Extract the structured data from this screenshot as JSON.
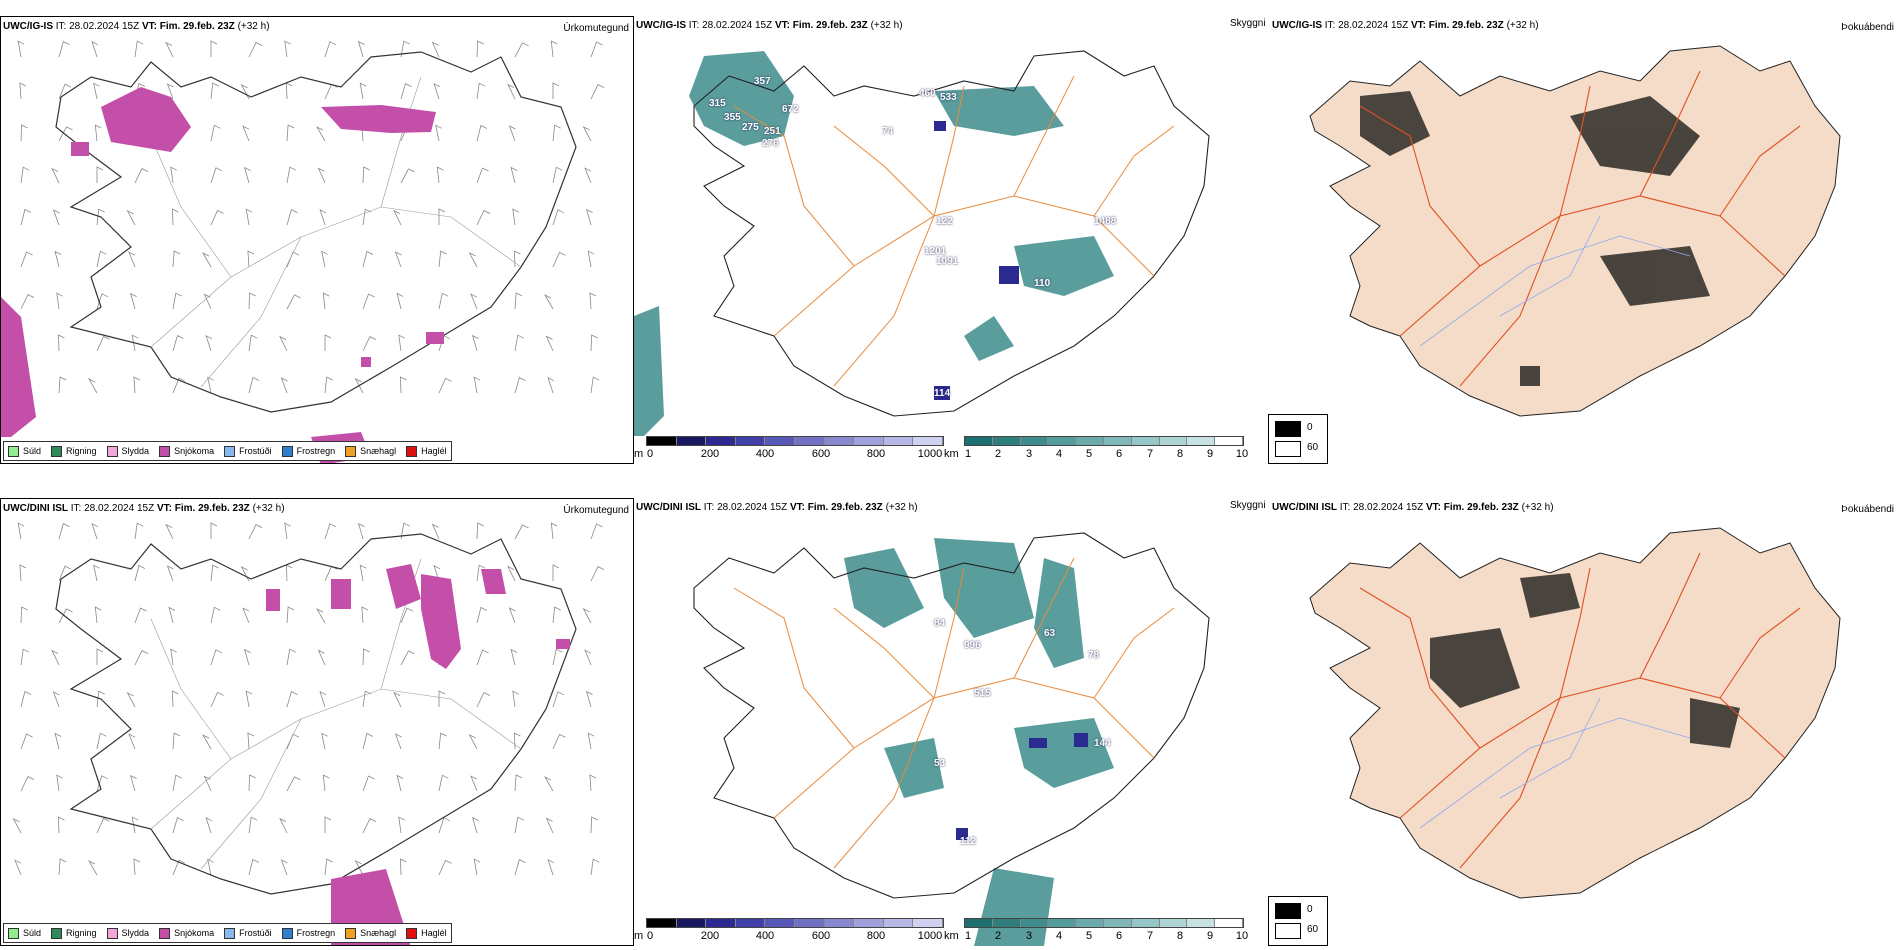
{
  "rows": [
    {
      "header": {
        "model": "UWC/IG-IS",
        "it_label": "IT:",
        "it_value": "28.02.2024 15Z",
        "vt_label": "VT:",
        "vt_value": "Fim. 29.feb. 23Z",
        "lead": "(+32 h)"
      },
      "precip_title": "Úrkomutegund",
      "cloud_title": "Skyggni",
      "fog_title": "Þokuábendi",
      "cloud_numbers": [
        "357",
        "315",
        "355",
        "672",
        "275",
        "251",
        "276",
        "460",
        "533",
        "74",
        "122",
        "1201",
        "1091",
        "110",
        "114",
        "1488"
      ]
    },
    {
      "header": {
        "model": "UWC/DINI ISL",
        "it_label": "IT:",
        "it_value": "28.02.2024 15Z",
        "vt_label": "VT:",
        "vt_value": "Fim. 29.feb. 23Z",
        "lead": "(+32 h)"
      },
      "precip_title": "Úrkomutegund",
      "cloud_title": "Skyggni",
      "fog_title": "Þokuábendi",
      "cloud_numbers": [
        "84",
        "996",
        "515",
        "63",
        "78",
        "144",
        "112",
        "53"
      ]
    }
  ],
  "precip_legend": [
    {
      "label": "Súld",
      "color": "#90ee90"
    },
    {
      "label": "Rigning",
      "color": "#2e8b57"
    },
    {
      "label": "Slydda",
      "color": "#f4a6d8"
    },
    {
      "label": "Snjókoma",
      "color": "#c44fa8"
    },
    {
      "label": "Frostúði",
      "color": "#87b9ec"
    },
    {
      "label": "Frostregn",
      "color": "#2f7fd0"
    },
    {
      "label": "Snæhagl",
      "color": "#f0a020"
    },
    {
      "label": "Haglél",
      "color": "#e01010"
    }
  ],
  "ceiling_bar": {
    "unit": "m",
    "ticks": [
      "0",
      "200",
      "400",
      "600",
      "800",
      "1000"
    ],
    "colors": [
      "#000000",
      "#181860",
      "#2a2a90",
      "#4040a8",
      "#5858b8",
      "#7070c4",
      "#8888d0",
      "#a0a0dc",
      "#b8b8e6",
      "#d0d0f0"
    ]
  },
  "visibility_bar": {
    "unit": "km",
    "ticks": [
      "1",
      "2",
      "3",
      "4",
      "5",
      "6",
      "7",
      "8",
      "9",
      "10"
    ],
    "colors": [
      "#1e7070",
      "#2e7e7e",
      "#3e8c8c",
      "#559c9c",
      "#6aaaaa",
      "#80b8b8",
      "#96c6c6",
      "#aed4d4",
      "#c6e2e2",
      "#ffffff"
    ]
  },
  "fog_legend": [
    {
      "value": "0",
      "color": "#000000"
    },
    {
      "value": "60",
      "color": "#ffffff"
    }
  ]
}
